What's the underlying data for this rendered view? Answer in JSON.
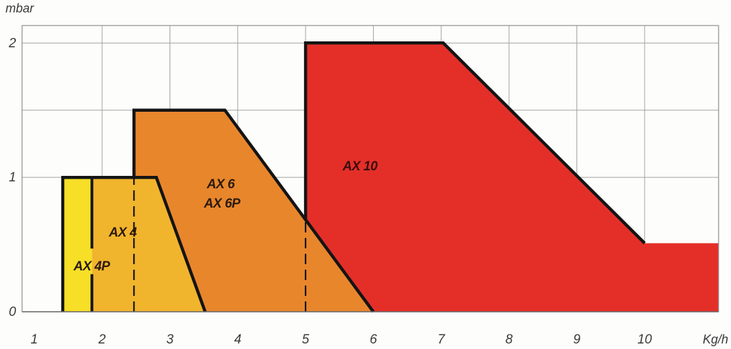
{
  "chart_data": {
    "type": "area",
    "xlabel": "Kg/h",
    "ylabel": "mbar",
    "x_ticks": [
      1,
      2,
      3,
      4,
      5,
      6,
      7,
      8,
      9,
      10
    ],
    "x_tick_labels": [
      "1",
      "2",
      "3",
      "4",
      "5",
      "6",
      "7",
      "8",
      "9",
      "10"
    ],
    "y_ticks": [
      0,
      1,
      2
    ],
    "y_tick_labels": [
      "0",
      "1",
      "2"
    ],
    "xlim": [
      0.82,
      11.09
    ],
    "ylim": [
      0,
      2.13
    ],
    "grid": true,
    "grid_x": [
      2,
      3,
      4,
      5,
      6,
      7,
      8,
      9,
      10
    ],
    "grid_y": [
      1,
      1.5,
      2
    ],
    "outline_color": "#141414",
    "label_color": "#2b1a0c",
    "series": [
      {
        "labels": [
          "AX 10"
        ],
        "color": "#e42f29",
        "fill": [
          [
            5.0,
            0
          ],
          [
            5.0,
            2.0
          ],
          [
            7.03,
            2.0
          ],
          [
            10.0,
            0.51
          ],
          [
            11.09,
            0.51
          ],
          [
            11.09,
            0
          ]
        ],
        "outline": [
          [
            5.0,
            0
          ],
          [
            5.0,
            2.0
          ],
          [
            7.03,
            2.0
          ],
          [
            10.0,
            0.51
          ]
        ]
      },
      {
        "labels": [
          "AX 6",
          "AX 6P"
        ],
        "color": "#e8862c",
        "fill": [
          [
            2.47,
            0
          ],
          [
            2.47,
            1.5
          ],
          [
            3.81,
            1.5
          ],
          [
            6.0,
            0
          ]
        ],
        "outline": [
          [
            2.47,
            0
          ],
          [
            2.47,
            1.5
          ],
          [
            3.81,
            1.5
          ],
          [
            6.0,
            0
          ]
        ]
      },
      {
        "labels": [
          "AX 4"
        ],
        "color": "#f1b42d",
        "fill": [
          [
            1.85,
            0
          ],
          [
            1.85,
            1.0
          ],
          [
            2.8,
            1.0
          ],
          [
            3.52,
            0
          ]
        ],
        "outline": [
          [
            1.85,
            1.0
          ],
          [
            2.8,
            1.0
          ],
          [
            3.52,
            0
          ]
        ]
      },
      {
        "labels": [
          "AX 4P"
        ],
        "color": "#f6df26",
        "fill": [
          [
            1.42,
            0
          ],
          [
            1.42,
            1.0
          ],
          [
            1.85,
            1.0
          ],
          [
            1.85,
            0
          ]
        ],
        "outline": [
          [
            1.42,
            0
          ],
          [
            1.42,
            1.0
          ],
          [
            1.85,
            1.0
          ]
        ]
      }
    ],
    "dividers": [
      {
        "x": 1.85,
        "dashed": false,
        "segments": [
          [
            0,
            0.28
          ],
          [
            0.47,
            1.0
          ]
        ]
      },
      {
        "x": 2.47,
        "dashed": true,
        "segments": [
          [
            0,
            1.0
          ]
        ]
      },
      {
        "x": 5.0,
        "dashed": true,
        "segments": [
          [
            0,
            0.685
          ]
        ]
      }
    ]
  }
}
